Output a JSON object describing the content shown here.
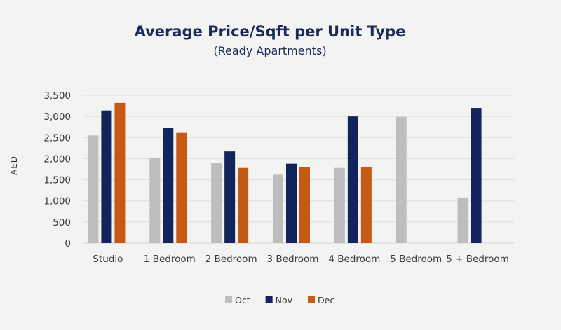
{
  "chart_data": {
    "type": "bar",
    "title": "Average Price/Sqft per Unit Type",
    "subtitle": "(Ready Apartments)",
    "xlabel": "",
    "ylabel": "AED",
    "ylim": [
      0,
      3500
    ],
    "yticks": [
      0,
      500,
      1000,
      1500,
      2000,
      2500,
      3000,
      3500
    ],
    "ytick_labels": [
      "0",
      "500",
      "1,000",
      "1,500",
      "2,000",
      "2,500",
      "3,000",
      "3,500"
    ],
    "grid": true,
    "legend_position": "bottom",
    "categories": [
      "Studio",
      "1 Bedroom",
      "2 Bedroom",
      "3 Bedroom",
      "4 Bedroom",
      "5 Bedroom",
      "5 + Bedroom"
    ],
    "series": [
      {
        "name": "Oct",
        "color": "#bdbdbd",
        "values": [
          2550,
          2010,
          1890,
          1620,
          1780,
          2990,
          1080
        ]
      },
      {
        "name": "Nov",
        "color": "#13235b",
        "values": [
          3140,
          2730,
          2170,
          1880,
          3000,
          null,
          3200
        ]
      },
      {
        "name": "Dec",
        "color": "#c55a15",
        "values": [
          3320,
          2610,
          1780,
          1800,
          1800,
          null,
          null
        ]
      }
    ]
  }
}
